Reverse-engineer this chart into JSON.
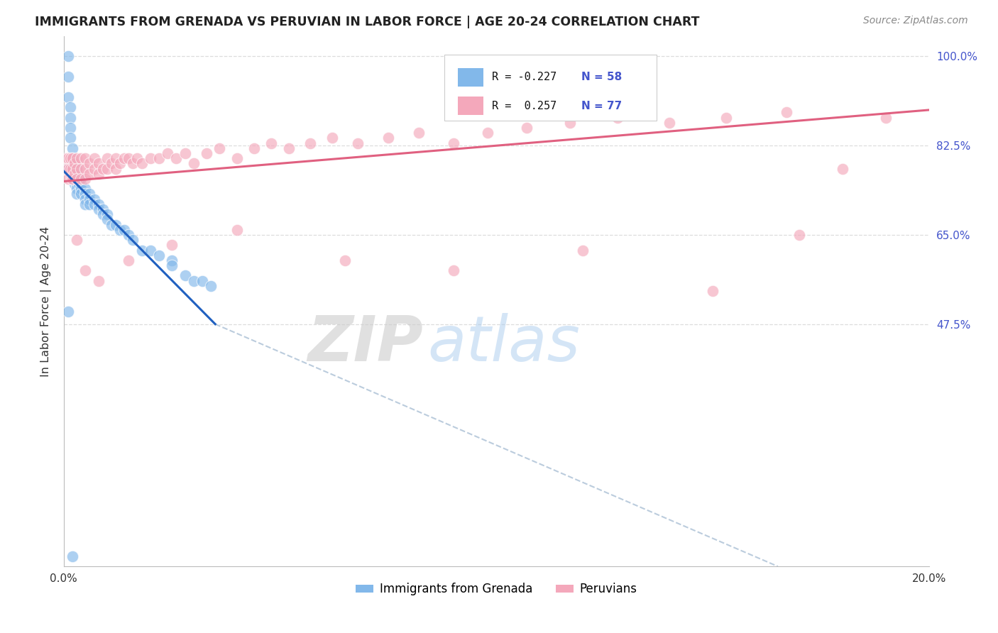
{
  "title": "IMMIGRANTS FROM GRENADA VS PERUVIAN IN LABOR FORCE | AGE 20-24 CORRELATION CHART",
  "source": "Source: ZipAtlas.com",
  "ylabel": "In Labor Force | Age 20-24",
  "x_min": 0.0,
  "x_max": 0.2,
  "y_min": 0.0,
  "y_max": 1.04,
  "y_tick_positions": [
    0.475,
    0.65,
    0.825,
    1.0
  ],
  "y_tick_labels": [
    "47.5%",
    "65.0%",
    "82.5%",
    "100.0%"
  ],
  "x_tick_positions": [
    0.0,
    0.04,
    0.08,
    0.12,
    0.16,
    0.2
  ],
  "x_tick_labels": [
    "0.0%",
    "",
    "",
    "",
    "",
    "20.0%"
  ],
  "grenada_R": "-0.227",
  "grenada_N": "58",
  "peruvian_R": "0.257",
  "peruvian_N": "77",
  "grenada_color": "#82B8EA",
  "peruvian_color": "#F4A8BB",
  "grenada_line_color": "#2060C0",
  "peruvian_line_color": "#E06080",
  "dashed_line_color": "#BBCCDD",
  "legend_label_1": "Immigrants from Grenada",
  "legend_label_2": "Peruvians",
  "watermark_zip": "ZIP",
  "watermark_atlas": "atlas",
  "bg_color": "#FFFFFF",
  "grid_color": "#DDDDDD",
  "axis_label_color": "#4455CC",
  "title_color": "#222222",
  "grenada_line_x0": 0.0,
  "grenada_line_y0": 0.775,
  "grenada_line_x1": 0.035,
  "grenada_line_y1": 0.475,
  "peruvian_line_x0": 0.0,
  "peruvian_line_y0": 0.755,
  "peruvian_line_x1": 0.2,
  "peruvian_line_y1": 0.895,
  "dashed_line_x0": 0.035,
  "dashed_line_y0": 0.475,
  "dashed_line_x1": 0.165,
  "dashed_line_y1": 0.0,
  "grenada_x": [
    0.0005,
    0.001,
    0.001,
    0.001,
    0.0015,
    0.0015,
    0.0015,
    0.0015,
    0.002,
    0.002,
    0.002,
    0.002,
    0.002,
    0.0025,
    0.0025,
    0.003,
    0.003,
    0.003,
    0.003,
    0.003,
    0.003,
    0.0035,
    0.0035,
    0.004,
    0.004,
    0.004,
    0.005,
    0.005,
    0.005,
    0.005,
    0.006,
    0.006,
    0.006,
    0.007,
    0.007,
    0.008,
    0.008,
    0.009,
    0.009,
    0.01,
    0.01,
    0.011,
    0.012,
    0.013,
    0.014,
    0.015,
    0.016,
    0.018,
    0.02,
    0.022,
    0.025,
    0.025,
    0.028,
    0.03,
    0.032,
    0.034,
    0.001,
    0.002
  ],
  "grenada_y": [
    0.78,
    1.0,
    0.96,
    0.92,
    0.9,
    0.88,
    0.86,
    0.84,
    0.82,
    0.8,
    0.79,
    0.78,
    0.77,
    0.76,
    0.75,
    0.78,
    0.77,
    0.76,
    0.75,
    0.74,
    0.73,
    0.76,
    0.75,
    0.75,
    0.74,
    0.73,
    0.74,
    0.73,
    0.72,
    0.71,
    0.73,
    0.72,
    0.71,
    0.72,
    0.71,
    0.71,
    0.7,
    0.7,
    0.69,
    0.69,
    0.68,
    0.67,
    0.67,
    0.66,
    0.66,
    0.65,
    0.64,
    0.62,
    0.62,
    0.61,
    0.6,
    0.59,
    0.57,
    0.56,
    0.56,
    0.55,
    0.5,
    0.02
  ],
  "peruvian_x": [
    0.0005,
    0.0005,
    0.001,
    0.001,
    0.001,
    0.0015,
    0.0015,
    0.002,
    0.002,
    0.002,
    0.0025,
    0.0025,
    0.003,
    0.003,
    0.003,
    0.004,
    0.004,
    0.004,
    0.005,
    0.005,
    0.005,
    0.006,
    0.006,
    0.007,
    0.007,
    0.008,
    0.008,
    0.009,
    0.01,
    0.01,
    0.011,
    0.012,
    0.012,
    0.013,
    0.014,
    0.015,
    0.016,
    0.017,
    0.018,
    0.02,
    0.022,
    0.024,
    0.026,
    0.028,
    0.03,
    0.033,
    0.036,
    0.04,
    0.044,
    0.048,
    0.052,
    0.057,
    0.062,
    0.068,
    0.075,
    0.082,
    0.09,
    0.098,
    0.107,
    0.117,
    0.128,
    0.14,
    0.153,
    0.167,
    0.003,
    0.005,
    0.008,
    0.015,
    0.025,
    0.04,
    0.065,
    0.09,
    0.12,
    0.15,
    0.17,
    0.18,
    0.19
  ],
  "peruvian_y": [
    0.8,
    0.78,
    0.8,
    0.78,
    0.76,
    0.8,
    0.78,
    0.8,
    0.78,
    0.76,
    0.79,
    0.77,
    0.8,
    0.78,
    0.76,
    0.8,
    0.78,
    0.76,
    0.8,
    0.78,
    0.76,
    0.79,
    0.77,
    0.8,
    0.78,
    0.79,
    0.77,
    0.78,
    0.8,
    0.78,
    0.79,
    0.8,
    0.78,
    0.79,
    0.8,
    0.8,
    0.79,
    0.8,
    0.79,
    0.8,
    0.8,
    0.81,
    0.8,
    0.81,
    0.79,
    0.81,
    0.82,
    0.8,
    0.82,
    0.83,
    0.82,
    0.83,
    0.84,
    0.83,
    0.84,
    0.85,
    0.83,
    0.85,
    0.86,
    0.87,
    0.88,
    0.87,
    0.88,
    0.89,
    0.64,
    0.58,
    0.56,
    0.6,
    0.63,
    0.66,
    0.6,
    0.58,
    0.62,
    0.54,
    0.65,
    0.78,
    0.88
  ]
}
